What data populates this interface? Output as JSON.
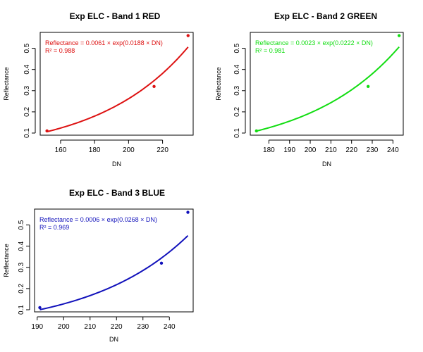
{
  "chart_data": [
    {
      "type": "scatter",
      "title": "Exp ELC - Band 1 RED",
      "xlabel": "DN",
      "ylabel": "Reflectance",
      "xlim": [
        148,
        238
      ],
      "ylim": [
        0.09,
        0.575
      ],
      "xticks": [
        160,
        180,
        200,
        220
      ],
      "yticks": [
        0.1,
        0.2,
        0.3,
        0.4,
        0.5
      ],
      "color": "#dd1111",
      "equation": "Reflectance = 0.0061 × exp(0.0188 × DN)",
      "r_squared": "R² = 0.988",
      "fit": {
        "a": 0.0061,
        "b": 0.0188,
        "x_from": 152,
        "x_to": 235
      },
      "points": [
        {
          "x": 152,
          "y": 0.11
        },
        {
          "x": 215,
          "y": 0.32
        },
        {
          "x": 235,
          "y": 0.56
        }
      ]
    },
    {
      "type": "scatter",
      "title": "Exp ELC - Band 2 GREEN",
      "xlabel": "DN",
      "ylabel": "Reflectance",
      "xlim": [
        171,
        245
      ],
      "ylim": [
        0.09,
        0.575
      ],
      "xticks": [
        180,
        190,
        200,
        210,
        220,
        230,
        240
      ],
      "yticks": [
        0.1,
        0.2,
        0.3,
        0.4,
        0.5
      ],
      "color": "#11dd11",
      "equation": "Reflectance = 0.0023 × exp(0.0222 × DN)",
      "r_squared": "R² = 0.981",
      "fit": {
        "a": 0.0023,
        "b": 0.0222,
        "x_from": 174,
        "x_to": 243
      },
      "points": [
        {
          "x": 174,
          "y": 0.11
        },
        {
          "x": 228,
          "y": 0.32
        },
        {
          "x": 243,
          "y": 0.56
        }
      ]
    },
    {
      "type": "scatter",
      "title": "Exp ELC - Band 3 BLUE",
      "xlabel": "DN",
      "ylabel": "Reflectance",
      "xlim": [
        189,
        249
      ],
      "ylim": [
        0.09,
        0.575
      ],
      "xticks": [
        190,
        200,
        210,
        220,
        230,
        240
      ],
      "yticks": [
        0.1,
        0.2,
        0.3,
        0.4,
        0.5
      ],
      "color": "#1111bb",
      "equation": "Reflectance = 0.0006 × exp(0.0268 × DN)",
      "r_squared": "R² = 0.969",
      "fit": {
        "a": 0.0006,
        "b": 0.0268,
        "x_from": 191,
        "x_to": 247
      },
      "points": [
        {
          "x": 191,
          "y": 0.11
        },
        {
          "x": 237,
          "y": 0.32
        },
        {
          "x": 247,
          "y": 0.56
        }
      ]
    }
  ]
}
